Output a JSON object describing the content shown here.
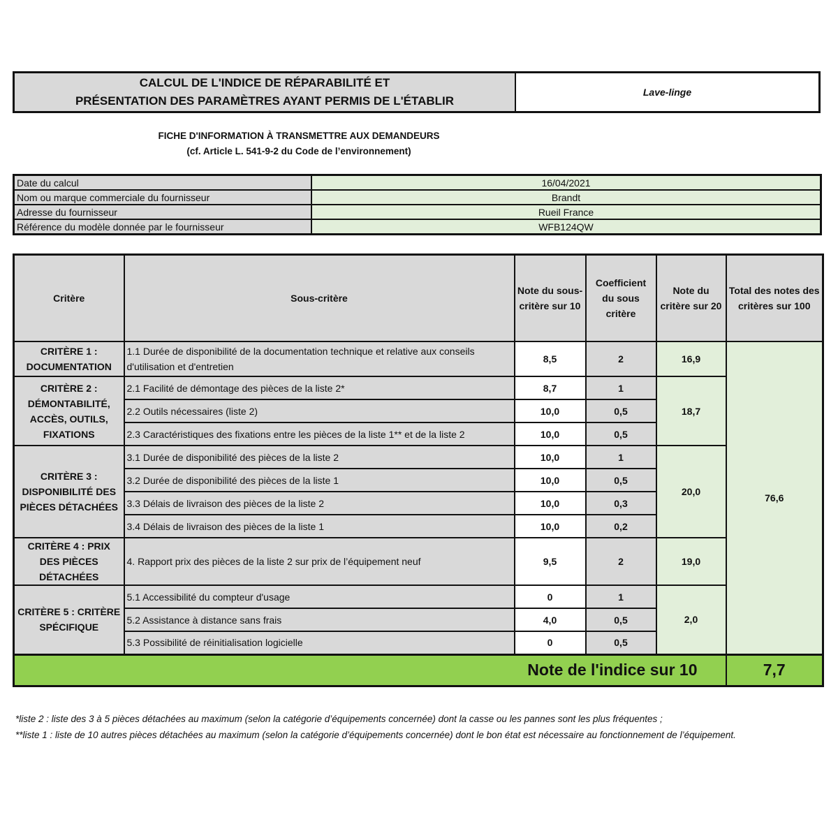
{
  "header": {
    "title_line1": "CALCUL DE L'INDICE DE RÉPARABILITÉ ET",
    "title_line2": "PRÉSENTATION DES PARAMÈTRES AYANT PERMIS DE L'ÉTABLIR",
    "product": "Lave-linge",
    "subtitle_line1": "FICHE D'INFORMATION À TRANSMETTRE AUX DEMANDEURS",
    "subtitle_line2": "(cf. Article L. 541-9-2 du Code de l’environnement)"
  },
  "info": [
    {
      "label": "Date du calcul",
      "value": "16/04/2021"
    },
    {
      "label": "Nom ou marque commerciale du fournisseur",
      "value": "Brandt"
    },
    {
      "label": "Adresse du fournisseur",
      "value": "Rueil France"
    },
    {
      "label": "Référence du modèle donnée par le fournisseur",
      "value": "WFB124QW"
    }
  ],
  "table": {
    "headers": [
      "Critère",
      "Sous-critère",
      "Note du sous-critère sur 10",
      "Coefficient du sous critère",
      "Note du critère sur 20",
      "Total des notes des critères sur 100"
    ],
    "criteria": [
      {
        "name": "CRITÈRE 1 : DOCUMENTATION",
        "score20": "16,9"
      },
      {
        "name": "CRITÈRE 2 : DÉMONTABILITÉ, ACCÈS, OUTILS, FIXATIONS",
        "score20": "18,7"
      },
      {
        "name": "CRITÈRE 3 : DISPONIBILITÉ DES PIÈCES DÉTACHÉES",
        "score20": "20,0"
      },
      {
        "name": "CRITÈRE 4 : PRIX DES PIÈCES DÉTACHÉES",
        "score20": "19,0"
      },
      {
        "name": "CRITÈRE 5 : CRITÈRE SPÉCIFIQUE",
        "score20": "2,0"
      }
    ],
    "rows": [
      {
        "sub": "1.1 Durée de disponibilité de la documentation technique et relative aux conseils d'utilisation et d'entretien",
        "note": "8,5",
        "coef": "2"
      },
      {
        "sub": "2.1 Facilité de démontage des pièces de la liste 2*",
        "note": "8,7",
        "coef": "1"
      },
      {
        "sub": "2.2 Outils nécessaires (liste 2)",
        "note": "10,0",
        "coef": "0,5"
      },
      {
        "sub": "2.3 Caractéristiques des fixations entre les pièces de la liste 1** et de la liste 2",
        "note": "10,0",
        "coef": "0,5"
      },
      {
        "sub": "3.1 Durée de disponibilité des pièces de la liste 2",
        "note": "10,0",
        "coef": "1"
      },
      {
        "sub": "3.2 Durée de disponibilité des pièces de la liste 1",
        "note": "10,0",
        "coef": "0,5"
      },
      {
        "sub": "3.3 Délais de livraison des pièces de la liste 2",
        "note": "10,0",
        "coef": "0,3"
      },
      {
        "sub": "3.4 Délais de livraison des pièces de la liste 1",
        "note": "10,0",
        "coef": "0,2"
      },
      {
        "sub": "4. Rapport prix des pièces de la liste 2 sur prix de l’équipement neuf",
        "note": "9,5",
        "coef": "2"
      },
      {
        "sub": "5.1 Accessibilité du compteur d'usage",
        "note": "0",
        "coef": "1"
      },
      {
        "sub": "5.2 Assistance à distance sans frais",
        "note": "4,0",
        "coef": "0,5"
      },
      {
        "sub": "5.3 Possibilité de réinitialisation logicielle",
        "note": "0",
        "coef": "0,5"
      }
    ],
    "total100": "76,6",
    "final_label": "Note de l'indice sur 10",
    "final_value": "7,7"
  },
  "footnotes": [
    "*liste 2 : liste des 3 à 5 pièces détachées au maximum (selon la catégorie d’équipements concernée) dont la casse ou les pannes sont les plus fréquentes ;",
    "**liste 1 : liste de 10 autres pièces détachées au maximum (selon la catégorie d’équipements concernée) dont le bon état est nécessaire au fonctionnement de l’équipement."
  ],
  "colors": {
    "gray": "#d9d9d9",
    "light_green": "#e2efda",
    "accent_green": "#92d050"
  }
}
